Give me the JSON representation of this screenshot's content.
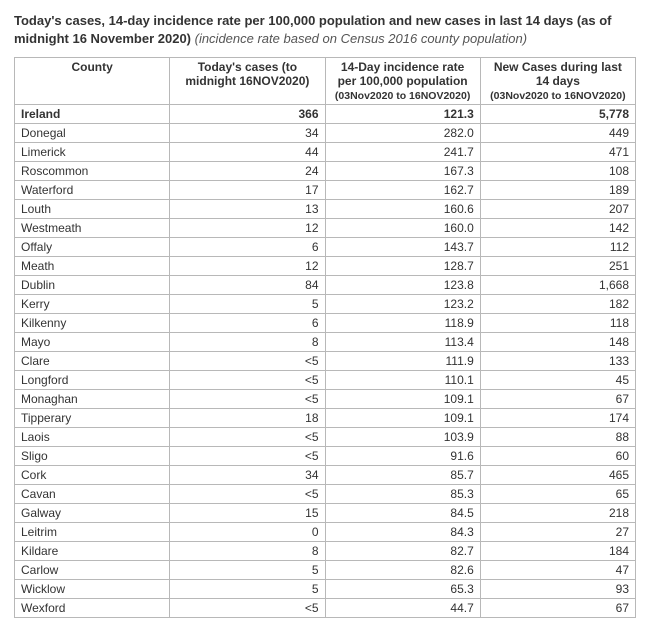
{
  "title": {
    "bold": "Today's cases, 14-day incidence rate per 100,000 population and new cases in last 14 days (as of midnight 16 November 2020)",
    "italic": " (incidence rate based on Census 2016 county population)"
  },
  "columns": {
    "county": "County",
    "today_main": "Today's cases (to midnight 16NOV2020)",
    "rate_main": "14-Day incidence rate per 100,000 population",
    "rate_sub": "(03Nov2020 to 16NOV2020)",
    "new_main": "New Cases during last 14 days",
    "new_sub": "(03Nov2020 to 16NOV2020)"
  },
  "styling": {
    "border_color": "#b8b8b8",
    "title_bold_color": "#333333",
    "title_italic_color": "#555555",
    "font_size_body": 12,
    "font_size_title": 13,
    "font_size_sub": 10.5,
    "background_color": "#ffffff",
    "column_widths_pct": [
      25,
      25,
      25,
      25
    ]
  },
  "rows": [
    {
      "county": "Ireland",
      "today": "366",
      "rate": "121.3",
      "new": "5,778",
      "total": true
    },
    {
      "county": "Donegal",
      "today": "34",
      "rate": "282.0",
      "new": "449"
    },
    {
      "county": "Limerick",
      "today": "44",
      "rate": "241.7",
      "new": "471"
    },
    {
      "county": "Roscommon",
      "today": "24",
      "rate": "167.3",
      "new": "108"
    },
    {
      "county": "Waterford",
      "today": "17",
      "rate": "162.7",
      "new": "189"
    },
    {
      "county": "Louth",
      "today": "13",
      "rate": "160.6",
      "new": "207"
    },
    {
      "county": "Westmeath",
      "today": "12",
      "rate": "160.0",
      "new": "142"
    },
    {
      "county": "Offaly",
      "today": "6",
      "rate": "143.7",
      "new": "112"
    },
    {
      "county": "Meath",
      "today": "12",
      "rate": "128.7",
      "new": "251"
    },
    {
      "county": "Dublin",
      "today": "84",
      "rate": "123.8",
      "new": "1,668"
    },
    {
      "county": "Kerry",
      "today": "5",
      "rate": "123.2",
      "new": "182"
    },
    {
      "county": "Kilkenny",
      "today": "6",
      "rate": "118.9",
      "new": "118"
    },
    {
      "county": "Mayo",
      "today": "8",
      "rate": "113.4",
      "new": "148"
    },
    {
      "county": "Clare",
      "today": "<5",
      "rate": "111.9",
      "new": "133"
    },
    {
      "county": "Longford",
      "today": "<5",
      "rate": "110.1",
      "new": "45"
    },
    {
      "county": "Monaghan",
      "today": "<5",
      "rate": "109.1",
      "new": "67"
    },
    {
      "county": "Tipperary",
      "today": "18",
      "rate": "109.1",
      "new": "174"
    },
    {
      "county": "Laois",
      "today": "<5",
      "rate": "103.9",
      "new": "88"
    },
    {
      "county": "Sligo",
      "today": "<5",
      "rate": "91.6",
      "new": "60"
    },
    {
      "county": "Cork",
      "today": "34",
      "rate": "85.7",
      "new": "465"
    },
    {
      "county": "Cavan",
      "today": "<5",
      "rate": "85.3",
      "new": "65"
    },
    {
      "county": "Galway",
      "today": "15",
      "rate": "84.5",
      "new": "218"
    },
    {
      "county": "Leitrim",
      "today": "0",
      "rate": "84.3",
      "new": "27"
    },
    {
      "county": "Kildare",
      "today": "8",
      "rate": "82.7",
      "new": "184"
    },
    {
      "county": "Carlow",
      "today": "5",
      "rate": "82.6",
      "new": "47"
    },
    {
      "county": "Wicklow",
      "today": "5",
      "rate": "65.3",
      "new": "93"
    },
    {
      "county": "Wexford",
      "today": "<5",
      "rate": "44.7",
      "new": "67"
    }
  ]
}
